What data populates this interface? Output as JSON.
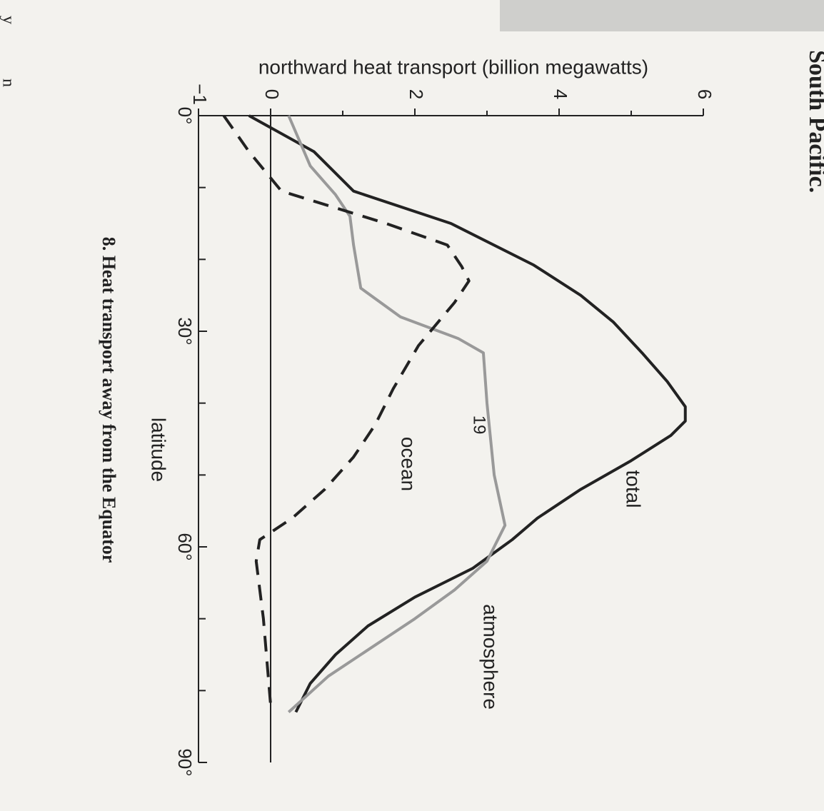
{
  "chart_data": {
    "type": "line",
    "page_heading": "South Pacific.",
    "margin_letters": [
      "y",
      "n"
    ],
    "caption": "8. Heat transport away from the Equator",
    "page_number": "19",
    "ylabel": "northward heat transport (billion megawatts)",
    "xlabel": "latitude",
    "xlim": [
      0,
      90
    ],
    "ylim": [
      -1,
      6
    ],
    "xticks": [
      {
        "value": 0,
        "label": "0°"
      },
      {
        "value": 30,
        "label": "30°"
      },
      {
        "value": 60,
        "label": "60°"
      },
      {
        "value": 90,
        "label": "90°"
      }
    ],
    "x_minor_ticks": [
      10,
      20,
      40,
      50,
      70,
      80
    ],
    "yticks": [
      {
        "value": -1,
        "label": "−1"
      },
      0,
      2,
      4,
      6
    ],
    "y_minor_ticks": [
      1,
      3,
      5
    ],
    "series": [
      {
        "name": "total",
        "color": "#222222",
        "dash": false,
        "x": [
          0,
          5,
          10.5,
          15,
          20.8,
          25,
          28.7,
          33,
          37,
          40.5,
          42.5,
          44.5,
          48,
          52,
          56,
          59,
          63,
          67,
          71,
          75,
          79,
          83
        ],
        "values": [
          -0.3,
          0.6,
          1.15,
          2.5,
          3.65,
          4.3,
          4.75,
          5.15,
          5.5,
          5.75,
          5.75,
          5.55,
          5.0,
          4.3,
          3.7,
          3.35,
          2.8,
          2.0,
          1.35,
          0.9,
          0.55,
          0.35
        ]
      },
      {
        "name": "atmosphere",
        "color": "#999999",
        "dash": false,
        "x": [
          0,
          7,
          11,
          14,
          18,
          24,
          28,
          31,
          33,
          40,
          50,
          57,
          62,
          66,
          70,
          74,
          78,
          83
        ],
        "values": [
          0.25,
          0.55,
          0.9,
          1.1,
          1.15,
          1.25,
          1.8,
          2.6,
          2.95,
          3.0,
          3.1,
          3.25,
          3.0,
          2.55,
          2.0,
          1.4,
          0.8,
          0.25
        ]
      },
      {
        "name": "ocean",
        "color": "#222222",
        "dash": true,
        "x": [
          0,
          5,
          10.5,
          15,
          18,
          21,
          23,
          26,
          32,
          38,
          43,
          47.5,
          52,
          56,
          59,
          62,
          66,
          70,
          76,
          82
        ],
        "values": [
          -0.65,
          -0.3,
          0.15,
          1.6,
          2.45,
          2.65,
          2.75,
          2.55,
          2.05,
          1.7,
          1.45,
          1.15,
          0.75,
          0.3,
          -0.15,
          -0.2,
          -0.15,
          -0.1,
          -0.05,
          0
        ]
      }
    ],
    "series_labels": [
      {
        "text": "total"
      },
      {
        "text": "atmosphere"
      },
      {
        "text": "ocean"
      }
    ]
  }
}
